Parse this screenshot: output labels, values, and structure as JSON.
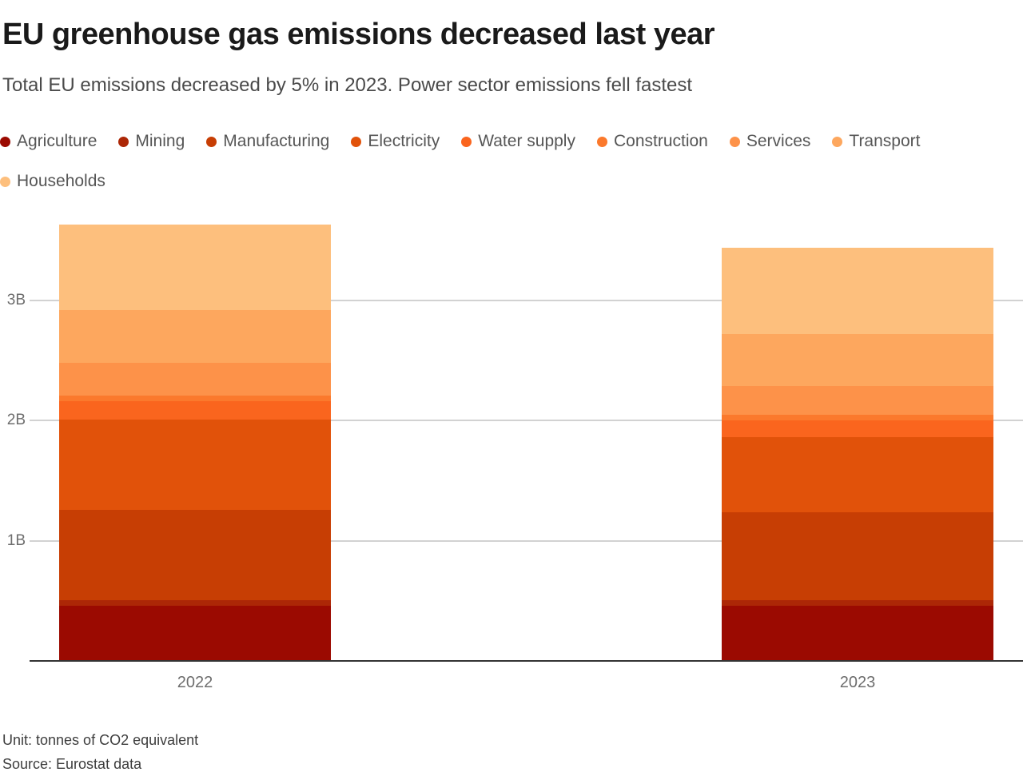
{
  "header": {
    "title": "EU greenhouse gas emissions decreased last year",
    "subtitle": "Total EU emissions decreased by 5% in 2023. Power sector emissions fell fastest"
  },
  "chart_data": {
    "type": "bar",
    "stacked": true,
    "title": "EU greenhouse gas emissions decreased last year",
    "subtitle": "Total EU emissions decreased by 5% in 2023. Power sector emissions fell fastest",
    "unit_label": "tonnes of CO2 equivalent, billions",
    "categories": [
      "2022",
      "2023"
    ],
    "series": [
      {
        "name": "Agriculture",
        "color": "#9B0A01",
        "values": [
          0.46,
          0.46
        ]
      },
      {
        "name": "Mining",
        "color": "#AC2706",
        "values": [
          0.05,
          0.05
        ]
      },
      {
        "name": "Manufacturing",
        "color": "#C73E04",
        "values": [
          0.75,
          0.73
        ]
      },
      {
        "name": "Electricity",
        "color": "#E1520A",
        "values": [
          0.75,
          0.62
        ]
      },
      {
        "name": "Water supply",
        "color": "#FA651E",
        "values": [
          0.15,
          0.14
        ]
      },
      {
        "name": "Construction",
        "color": "#FB792C",
        "values": [
          0.05,
          0.05
        ]
      },
      {
        "name": "Services",
        "color": "#FD9249",
        "values": [
          0.27,
          0.24
        ]
      },
      {
        "name": "Transport",
        "color": "#FDA75E",
        "values": [
          0.44,
          0.43
        ]
      },
      {
        "name": "Households",
        "color": "#FDBF7D",
        "values": [
          0.71,
          0.72
        ]
      }
    ],
    "yticks": [
      {
        "value": 1,
        "label": "1B"
      },
      {
        "value": 2,
        "label": "2B"
      },
      {
        "value": 3,
        "label": "3B"
      }
    ],
    "ylim": [
      0,
      3.72
    ],
    "grid": true,
    "legend_position": "top"
  },
  "footer": {
    "unit_note": "Unit: tonnes of CO2 equivalent",
    "source_note": "Source: Eurostat data"
  }
}
